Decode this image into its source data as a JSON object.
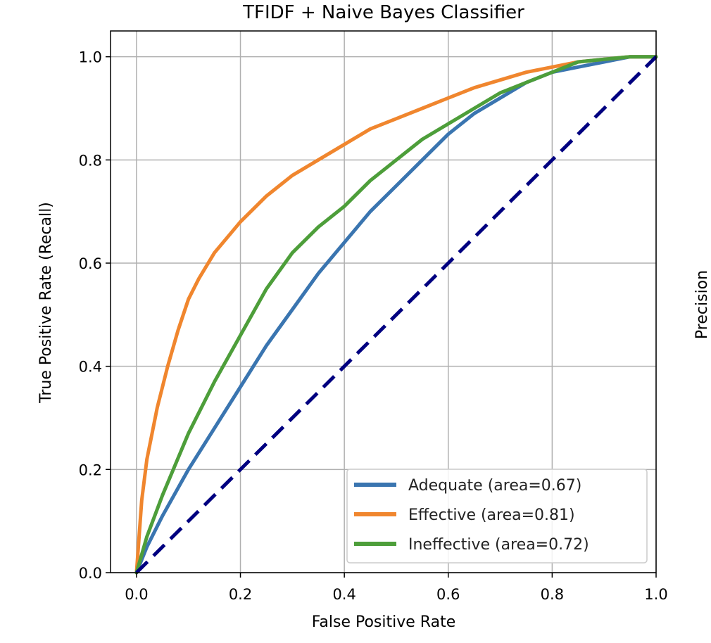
{
  "chart_data": {
    "type": "line",
    "title": "TFIDF + Naive Bayes Classifier",
    "xlabel": "False Positive Rate",
    "ylabel": "True Positive Rate (Recall)",
    "secondary_ylabel": "Precision",
    "xlim": [
      -0.05,
      1.0
    ],
    "ylim": [
      0.0,
      1.05
    ],
    "xticks": [
      "0.0",
      "0.2",
      "0.4",
      "0.6",
      "0.8",
      "1.0"
    ],
    "yticks": [
      "0.0",
      "0.2",
      "0.4",
      "0.6",
      "0.8",
      "1.0"
    ],
    "grid": true,
    "legend_position": "lower-right",
    "series": [
      {
        "name": "Adequate (area=0.67)",
        "color": "#3a75b0",
        "x": [
          0.0,
          0.02,
          0.05,
          0.1,
          0.15,
          0.2,
          0.25,
          0.3,
          0.35,
          0.4,
          0.45,
          0.5,
          0.55,
          0.6,
          0.65,
          0.7,
          0.75,
          0.8,
          0.85,
          0.9,
          0.95,
          1.0
        ],
        "y": [
          0.0,
          0.05,
          0.11,
          0.2,
          0.28,
          0.36,
          0.44,
          0.51,
          0.58,
          0.64,
          0.7,
          0.75,
          0.8,
          0.85,
          0.89,
          0.92,
          0.95,
          0.97,
          0.98,
          0.99,
          1.0,
          1.0
        ]
      },
      {
        "name": "Effective (area=0.81)",
        "color": "#f0862e",
        "x": [
          0.0,
          0.01,
          0.02,
          0.04,
          0.06,
          0.08,
          0.1,
          0.12,
          0.15,
          0.2,
          0.25,
          0.3,
          0.35,
          0.4,
          0.45,
          0.5,
          0.55,
          0.6,
          0.65,
          0.7,
          0.75,
          0.8,
          0.85,
          0.9,
          0.95,
          1.0
        ],
        "y": [
          0.0,
          0.14,
          0.22,
          0.32,
          0.4,
          0.47,
          0.53,
          0.57,
          0.62,
          0.68,
          0.73,
          0.77,
          0.8,
          0.83,
          0.86,
          0.88,
          0.9,
          0.92,
          0.94,
          0.955,
          0.97,
          0.98,
          0.99,
          0.995,
          1.0,
          1.0
        ]
      },
      {
        "name": "Ineffective (area=0.72)",
        "color": "#4d9e3a",
        "x": [
          0.0,
          0.02,
          0.05,
          0.1,
          0.15,
          0.2,
          0.25,
          0.3,
          0.35,
          0.4,
          0.45,
          0.5,
          0.55,
          0.6,
          0.65,
          0.7,
          0.75,
          0.8,
          0.85,
          0.9,
          0.95,
          1.0
        ],
        "y": [
          0.0,
          0.07,
          0.15,
          0.27,
          0.37,
          0.46,
          0.55,
          0.62,
          0.67,
          0.71,
          0.76,
          0.8,
          0.84,
          0.87,
          0.9,
          0.93,
          0.95,
          0.97,
          0.99,
          0.995,
          1.0,
          1.0
        ]
      }
    ],
    "reference_line": {
      "color": "#000080",
      "x": [
        0.0,
        1.0
      ],
      "y": [
        0.0,
        1.0
      ],
      "style": "dashed"
    }
  }
}
